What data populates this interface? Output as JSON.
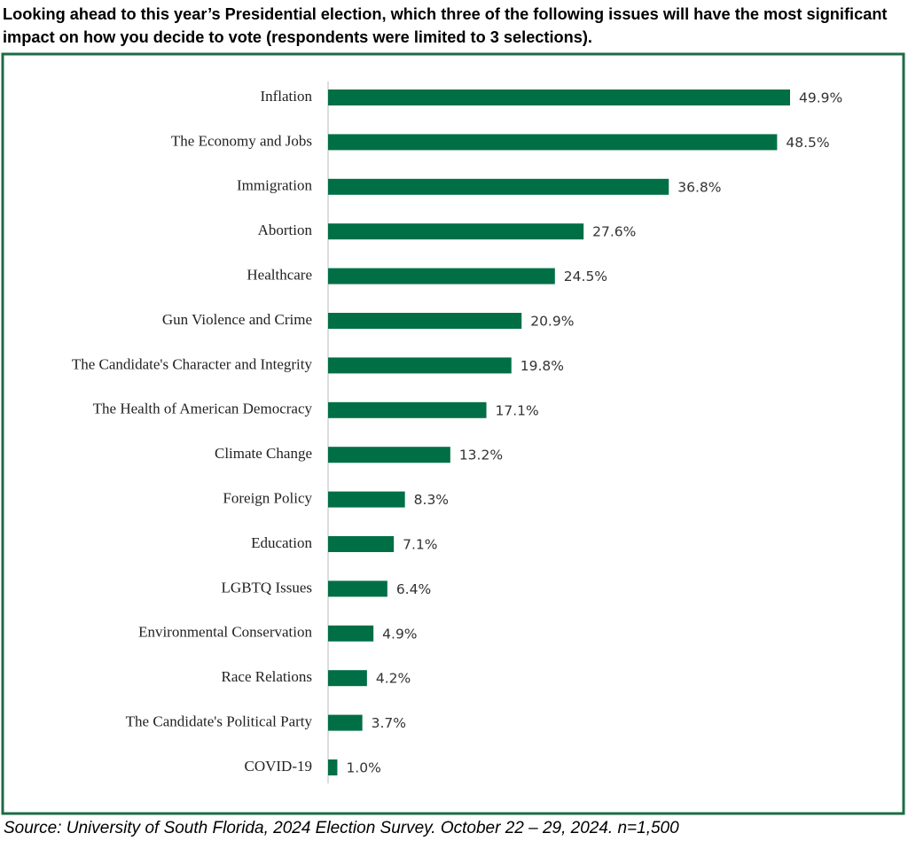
{
  "chart_data": {
    "type": "bar",
    "orientation": "horizontal",
    "title": "Looking ahead to this year’s Presidential election, which three of the following issues will have the most significant impact on how you decide to vote (respondents were limited to 3 selections).",
    "categories": [
      "Inflation",
      "The Economy and Jobs",
      "Immigration",
      "Abortion",
      "Healthcare",
      "Gun Violence and Crime",
      "The Candidate's Character and Integrity",
      "The Health of American Democracy",
      "Climate Change",
      "Foreign Policy",
      "Education",
      "LGBTQ Issues",
      "Environmental Conservation",
      "Race Relations",
      "The Candidate's Political Party",
      "COVID-19"
    ],
    "values": [
      49.9,
      48.5,
      36.8,
      27.6,
      24.5,
      20.9,
      19.8,
      17.1,
      13.2,
      8.3,
      7.1,
      6.4,
      4.9,
      4.2,
      3.7,
      1.0
    ],
    "value_labels": [
      "49.9%",
      "48.5%",
      "36.8%",
      "27.6%",
      "24.5%",
      "20.9%",
      "19.8%",
      "17.1%",
      "13.2%",
      "8.3%",
      "7.1%",
      "6.4%",
      "4.9%",
      "4.2%",
      "3.7%",
      "1.0%"
    ],
    "color": "#006f45",
    "source": "Source: University of South Florida, 2024 Election Survey.  October 22 – 29, 2024.  n=1,500"
  }
}
